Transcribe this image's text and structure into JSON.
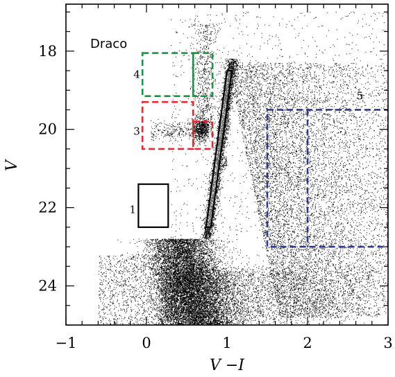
{
  "chart_data": {
    "type": "scatter",
    "title": "Draco",
    "xlabel": "V −I",
    "ylabel": "V",
    "xlim": [
      -1,
      3
    ],
    "ylim": [
      25,
      16.8
    ],
    "y_inverted": true,
    "xticks": [
      -1,
      0,
      1,
      2,
      3
    ],
    "xtick_labels": [
      "−1",
      "0",
      "1",
      "2",
      "3"
    ],
    "yticks": [
      18,
      20,
      22,
      24
    ],
    "ytick_labels": [
      "18",
      "20",
      "22",
      "24"
    ],
    "grid": false,
    "legend": "none",
    "point_color": "#000000",
    "features": {
      "main_sequence_turnoff": {
        "x_center": 0.55,
        "y_center": 23.7
      },
      "red_giant_branch": {
        "x_range": [
          0.75,
          1.05
        ],
        "y_range": [
          22.5,
          18.5
        ]
      },
      "red_clump": {
        "x": 0.68,
        "y": 20.0
      },
      "field_contamination": {
        "x_range": [
          1.5,
          3.0
        ],
        "y_range": [
          19.5,
          23.0
        ]
      }
    },
    "regions": [
      {
        "label": "1",
        "color": "#000000",
        "style": "solid",
        "x": [
          -0.1,
          0.27
        ],
        "y": [
          21.4,
          22.5
        ]
      },
      {
        "label": "2",
        "color": "#000000",
        "style": "solid-strip",
        "x_bottom": [
          0.74,
          0.8
        ],
        "x_top": [
          1.0,
          1.06
        ],
        "y": [
          22.5,
          18.5
        ]
      },
      {
        "label": "3",
        "color": "#e8262b",
        "style": "dashed",
        "x": [
          -0.05,
          0.58
        ],
        "y": [
          19.3,
          20.5
        ]
      },
      {
        "label": "3",
        "color": "#e8262b",
        "style": "dashed",
        "x": [
          0.58,
          0.82
        ],
        "y": [
          19.8,
          20.5
        ]
      },
      {
        "label": "4",
        "color": "#0e9a44",
        "style": "dashed",
        "x": [
          -0.05,
          0.58
        ],
        "y": [
          18.05,
          19.15
        ]
      },
      {
        "label": "4",
        "color": "#0e9a44",
        "style": "dashed",
        "x": [
          0.58,
          0.82
        ],
        "y": [
          18.05,
          19.15
        ]
      },
      {
        "label": "5",
        "color": "#2d3a8c",
        "style": "dashed",
        "x": [
          1.5,
          3.0
        ],
        "y": [
          19.5,
          23.0
        ]
      },
      {
        "label": "5",
        "color": "#2d3a8c",
        "style": "dashed",
        "x": [
          2.0,
          2.0
        ],
        "y": [
          19.5,
          23.0
        ]
      }
    ],
    "region_labels": [
      {
        "text": "1",
        "x": -0.17,
        "y": 22.05
      },
      {
        "text": "2",
        "x": 0.97,
        "y": 20.85
      },
      {
        "text": "3",
        "x": -0.12,
        "y": 20.05
      },
      {
        "text": "4",
        "x": -0.12,
        "y": 18.6
      },
      {
        "text": "5",
        "x": 2.65,
        "y": 19.15
      }
    ]
  }
}
